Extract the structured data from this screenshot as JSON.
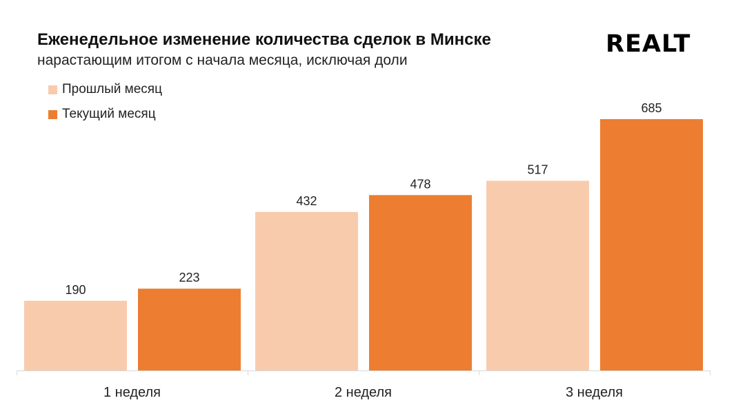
{
  "header": {
    "title": "Еженедельное изменение количества сделок в Минске",
    "subtitle": "нарастающим итогом с начала месяца, исключая доли",
    "logo": "REALT"
  },
  "chart_data": {
    "type": "bar",
    "title": "Еженедельное изменение количества сделок в Минске",
    "subtitle": "нарастающим итогом с начала месяца, исключая доли",
    "categories": [
      "1 неделя",
      "2 неделя",
      "3 неделя"
    ],
    "series": [
      {
        "name": "Прошлый месяц",
        "values": [
          190,
          432,
          517
        ],
        "color": "#F8CBAD"
      },
      {
        "name": "Текущий месяц",
        "values": [
          223,
          478,
          685
        ],
        "color": "#ED7D31"
      }
    ],
    "xlabel": "",
    "ylabel": "",
    "ylim": [
      0,
      685
    ],
    "grid": false,
    "legend_position": "top-left"
  }
}
